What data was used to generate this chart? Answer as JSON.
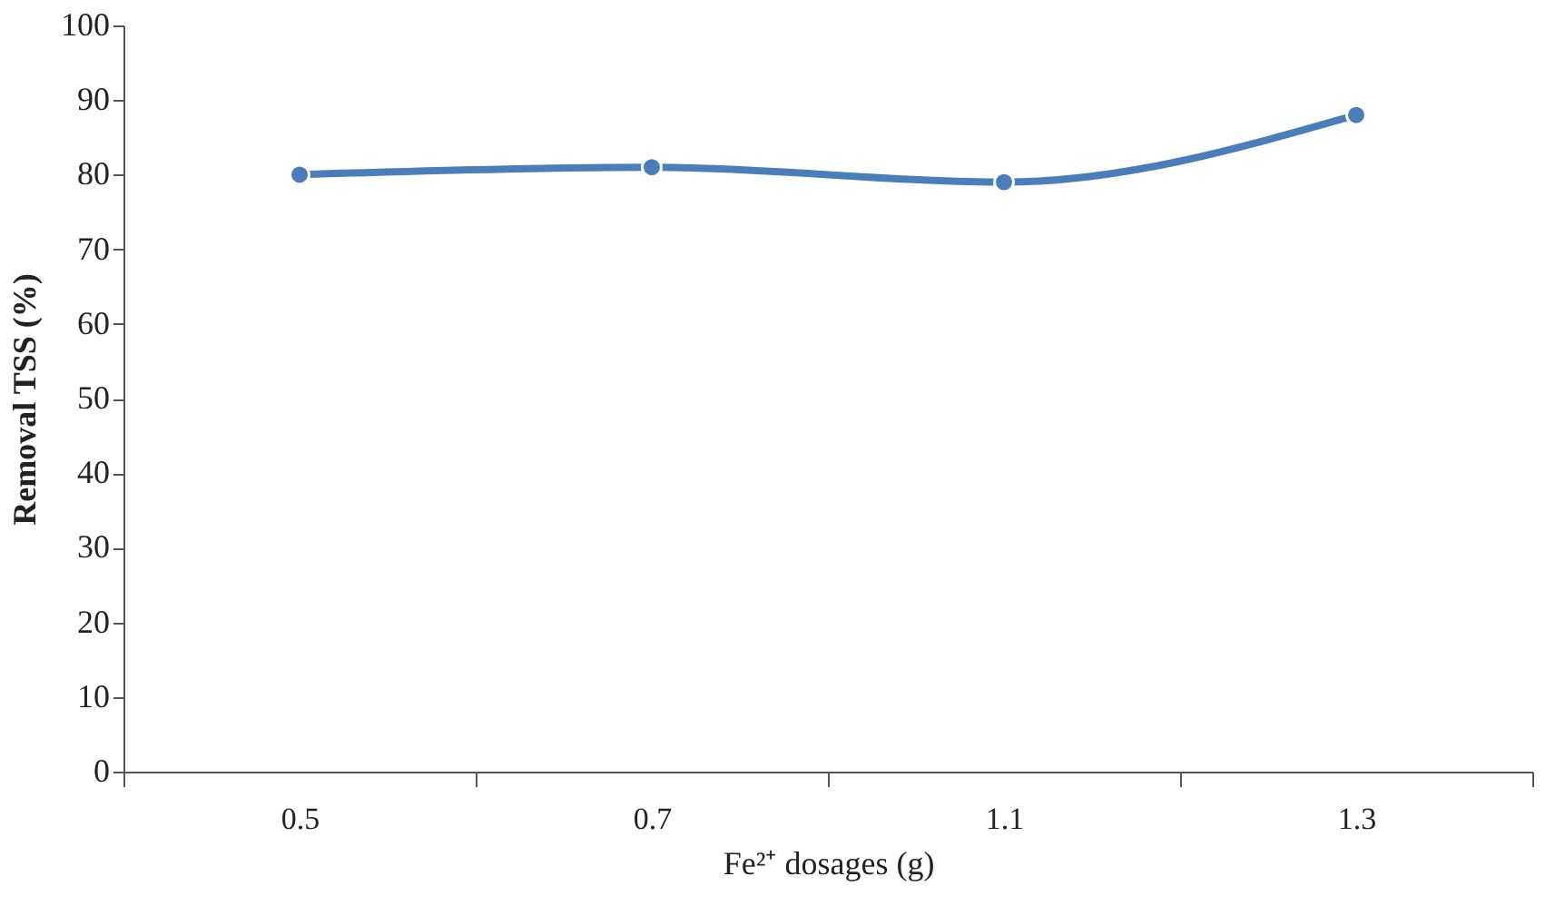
{
  "chart_data": {
    "type": "line",
    "xlabel": "Fe²⁺ dosages (g)",
    "ylabel": "Removal  TSS (%)",
    "categories": [
      "0.5",
      "0.7",
      "1.1",
      "1.3"
    ],
    "series": [
      {
        "color": "#4a7ebb",
        "values": [
          80,
          81,
          79,
          88
        ]
      }
    ],
    "ylim": [
      0,
      100
    ],
    "yticks": [
      0,
      10,
      20,
      30,
      40,
      50,
      60,
      70,
      80,
      90,
      100
    ],
    "grid": false,
    "marker": "circle",
    "line_style": "solid"
  }
}
